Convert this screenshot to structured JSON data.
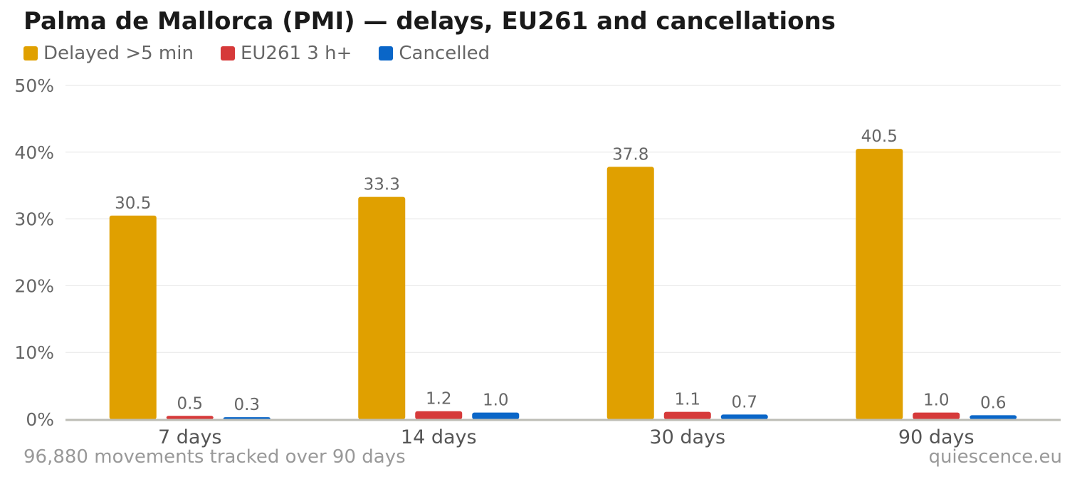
{
  "title": "Palma de Mallorca (PMI) — delays, EU261 and cancellations",
  "footer": {
    "left": "96,880 movements tracked over 90 days",
    "right": "quiescence.eu"
  },
  "chart_data": {
    "type": "bar",
    "title": "Palma de Mallorca (PMI) — delays, EU261 and cancellations",
    "categories": [
      "7 days",
      "14 days",
      "30 days",
      "90 days"
    ],
    "series": [
      {
        "name": "Delayed >5 min",
        "color": "#e0a000",
        "values": [
          30.5,
          33.3,
          37.8,
          40.5
        ],
        "labels": [
          "30.5",
          "33.3",
          "37.8",
          "40.5"
        ]
      },
      {
        "name": "EU261 3 h+",
        "color": "#d63a3a",
        "values": [
          0.5,
          1.2,
          1.1,
          1.0
        ],
        "labels": [
          "0.5",
          "1.2",
          "1.1",
          "1.0"
        ]
      },
      {
        "name": "Cancelled",
        "color": "#0a66c8",
        "values": [
          0.3,
          1.0,
          0.7,
          0.6
        ],
        "labels": [
          "0.3",
          "1.0",
          "0.7",
          "0.6"
        ]
      }
    ],
    "ylim": [
      0,
      50
    ],
    "yticks": [
      0,
      10,
      20,
      30,
      40,
      50
    ],
    "ytick_labels": [
      "0%",
      "10%",
      "20%",
      "30%",
      "40%",
      "50%"
    ],
    "grid": true,
    "legend_position": "top-left"
  }
}
